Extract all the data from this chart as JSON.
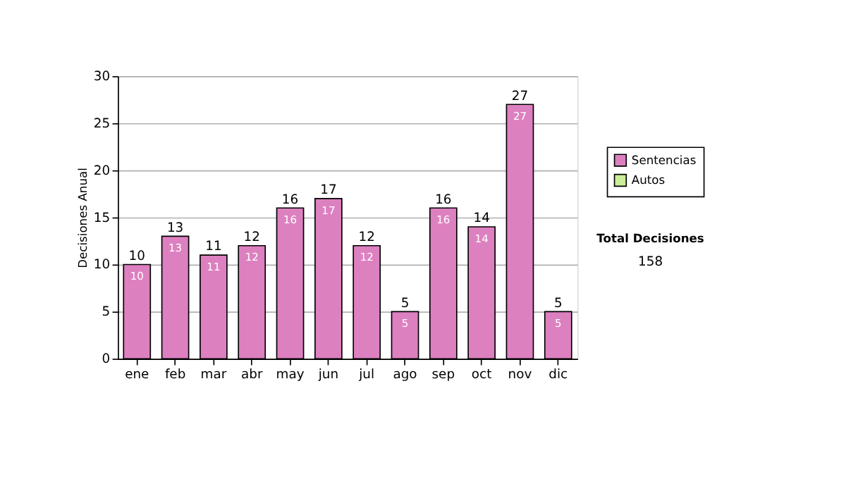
{
  "chart_data": {
    "type": "bar",
    "ylabel": "Decisiones Anual",
    "categories": [
      "ene",
      "feb",
      "mar",
      "abr",
      "may",
      "jun",
      "jul",
      "ago",
      "sep",
      "oct",
      "nov",
      "dic"
    ],
    "series": [
      {
        "name": "Sentencias",
        "color": "#dd80c0",
        "values": [
          10,
          13,
          11,
          12,
          16,
          17,
          12,
          5,
          16,
          14,
          27,
          5
        ],
        "value_labels": [
          "10",
          "13",
          "11",
          "12",
          "16",
          "17",
          "12",
          "5",
          "16",
          "14",
          "27",
          "5"
        ]
      },
      {
        "name": "Autos",
        "color": "#ccee99",
        "values": [
          null,
          null,
          null,
          null,
          null,
          null,
          null,
          null,
          null,
          null,
          null,
          null
        ]
      }
    ],
    "totals": [
      "10",
      "13",
      "11",
      "12",
      "16",
      "17",
      "12",
      "5",
      "16",
      "14",
      "27",
      "5"
    ],
    "ylim": [
      0,
      30
    ],
    "yticks": [
      0,
      5,
      10,
      15,
      20,
      25,
      30
    ],
    "grid": "y",
    "legend": "right",
    "annotations": [
      "Total Decisiones",
      "158"
    ]
  }
}
